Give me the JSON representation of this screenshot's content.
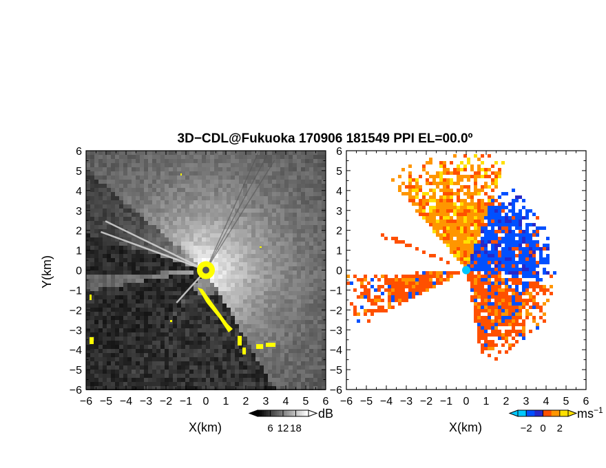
{
  "chart_data": [
    {
      "type": "heatmap",
      "panel": "reflectivity-ppi",
      "title": "3D−CDL@Fukuoka 170906 181549 PPI EL=00.0º",
      "xlabel": "X(km)",
      "ylabel": "Y(km)",
      "xlim": [
        -6,
        6
      ],
      "ylim": [
        -6,
        6
      ],
      "x_ticks": [
        "−6",
        "−5",
        "−4",
        "−3",
        "−2",
        "−1",
        "0",
        "1",
        "2",
        "3",
        "4",
        "5",
        "6"
      ],
      "y_ticks": [
        "6",
        "5",
        "4",
        "3",
        "2",
        "1",
        "0",
        "−1",
        "−2",
        "−3",
        "−4",
        "−5",
        "−6"
      ],
      "colorbar": {
        "unit": "dB",
        "tick_labels": [
          "6",
          "12",
          "18"
        ],
        "tick_values": [
          6,
          12,
          18
        ],
        "range": [
          0,
          24
        ],
        "colors": [
          "#000000",
          "#ffffff"
        ]
      },
      "blocked_sectors_deg": [
        {
          "from": 163,
          "to": 183
        },
        {
          "from": 190,
          "to": 234
        }
      ],
      "thin_beams_deg": [
        154,
        160,
        228
      ],
      "highlight_color": "#ffff00"
    },
    {
      "type": "heatmap",
      "panel": "doppler-velocity-ppi",
      "xlabel": "X(km)",
      "xlim": [
        -6,
        6
      ],
      "ylim": [
        -6,
        6
      ],
      "x_ticks": [
        "−6",
        "−5",
        "−4",
        "−3",
        "−2",
        "−1",
        "0",
        "1",
        "2",
        "3",
        "4",
        "5",
        "6"
      ],
      "y_ticks": [
        "6",
        "5",
        "4",
        "3",
        "2",
        "1",
        "0",
        "−1",
        "−2",
        "−3",
        "−4",
        "−5",
        "−6"
      ],
      "colorbar": {
        "unit": "ms",
        "unit_exponent": "−1",
        "tick_labels": [
          "−2",
          "0",
          "2"
        ],
        "tick_values": [
          -2,
          0,
          2
        ],
        "range": [
          -3,
          3
        ],
        "colors": [
          "#00c8ff",
          "#0050ff",
          "#2828c8",
          "#ff5000",
          "#ff9600",
          "#ffe000"
        ]
      },
      "sectors_deg": [
        {
          "from": 352,
          "to": 70,
          "dominant": "blue"
        },
        {
          "from": 70,
          "to": 130,
          "dominant": "orange-yellow"
        },
        {
          "from": 183,
          "to": 208,
          "dominant": "orange"
        },
        {
          "from": 280,
          "to": 350,
          "dominant": "orange-red"
        }
      ]
    }
  ]
}
